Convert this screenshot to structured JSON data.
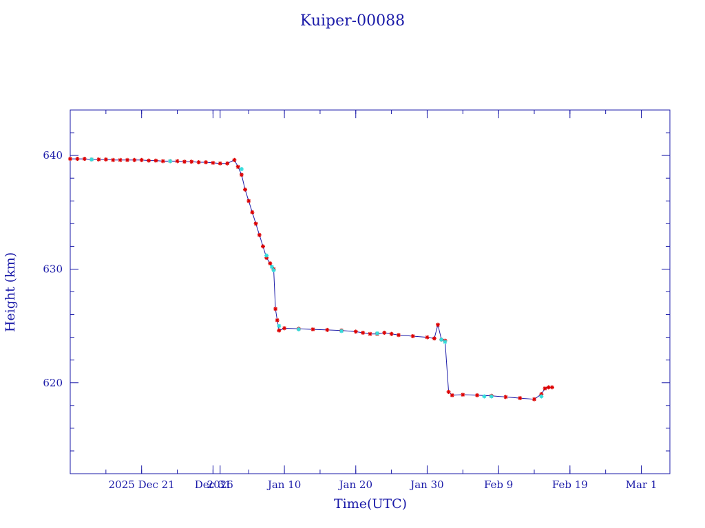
{
  "chart_data": {
    "type": "line",
    "title": "Kuiper-00088",
    "xlabel": "Time(UTC)",
    "ylabel": "Height (km)",
    "x_is_date": true,
    "xlim": [
      "2025-12-11",
      "2026-03-05"
    ],
    "ylim": [
      612.0,
      644.0
    ],
    "x_ticks": [
      {
        "date": "2025-12-21",
        "label": "2025 Dec 21"
      },
      {
        "date": "2025-12-31",
        "label": "Dec 31"
      },
      {
        "date": "2026-01-01",
        "label": "2026"
      },
      {
        "date": "2026-01-10",
        "label": "Jan 10"
      },
      {
        "date": "2026-01-20",
        "label": "Jan 20"
      },
      {
        "date": "2026-01-30",
        "label": "Jan 30"
      },
      {
        "date": "2026-02-09",
        "label": "Feb  9"
      },
      {
        "date": "2026-02-19",
        "label": "Feb 19"
      },
      {
        "date": "2026-03-01",
        "label": "Mar  1"
      }
    ],
    "y_ticks": [
      620,
      630,
      640
    ],
    "colors": {
      "axis": "#1a1aa8",
      "line": "#1a1aa8",
      "marker_primary": "#dd0000",
      "marker_secondary": "#33dddd"
    },
    "series": [
      {
        "points": [
          [
            "2025-12-11T00:00",
            639.7
          ],
          [
            "2025-12-12T00:00",
            639.7
          ],
          [
            "2025-12-13T00:00",
            639.7
          ],
          [
            "2025-12-14T00:00",
            639.65
          ],
          [
            "2025-12-15T00:00",
            639.65
          ],
          [
            "2025-12-16T00:00",
            639.65
          ],
          [
            "2025-12-17T00:00",
            639.6
          ],
          [
            "2025-12-18T00:00",
            639.6
          ],
          [
            "2025-12-19T00:00",
            639.6
          ],
          [
            "2025-12-20T00:00",
            639.6
          ],
          [
            "2025-12-21T00:00",
            639.6
          ],
          [
            "2025-12-22T00:00",
            639.55
          ],
          [
            "2025-12-23T00:00",
            639.55
          ],
          [
            "2025-12-24T00:00",
            639.5
          ],
          [
            "2025-12-25T00:00",
            639.5
          ],
          [
            "2025-12-26T00:00",
            639.5
          ],
          [
            "2025-12-27T00:00",
            639.45
          ],
          [
            "2025-12-28T00:00",
            639.45
          ],
          [
            "2025-12-29T00:00",
            639.4
          ],
          [
            "2025-12-30T00:00",
            639.4
          ],
          [
            "2025-12-31T00:00",
            639.35
          ],
          [
            "2026-01-01T00:00",
            639.3
          ],
          [
            "2026-01-02T00:00",
            639.3
          ],
          [
            "2026-01-03T00:00",
            639.6
          ],
          [
            "2026-01-03T12:00",
            639.0
          ],
          [
            "2026-01-04T00:00",
            638.3
          ],
          [
            "2026-01-04T12:00",
            637.0
          ],
          [
            "2026-01-05T00:00",
            636.0
          ],
          [
            "2026-01-05T12:00",
            635.0
          ],
          [
            "2026-01-06T00:00",
            634.0
          ],
          [
            "2026-01-06T12:00",
            633.0
          ],
          [
            "2026-01-07T00:00",
            632.0
          ],
          [
            "2026-01-07T12:00",
            631.0
          ],
          [
            "2026-01-08T00:00",
            630.5
          ],
          [
            "2026-01-08T12:00",
            630.0
          ],
          [
            "2026-01-08T18:00",
            626.5
          ],
          [
            "2026-01-09T00:00",
            625.5
          ],
          [
            "2026-01-09T06:00",
            624.6
          ],
          [
            "2026-01-10T00:00",
            624.8
          ],
          [
            "2026-01-12T00:00",
            624.75
          ],
          [
            "2026-01-14T00:00",
            624.7
          ],
          [
            "2026-01-16T00:00",
            624.65
          ],
          [
            "2026-01-18T00:00",
            624.6
          ],
          [
            "2026-01-20T00:00",
            624.5
          ],
          [
            "2026-01-21T00:00",
            624.4
          ],
          [
            "2026-01-22T00:00",
            624.3
          ],
          [
            "2026-01-23T00:00",
            624.3
          ],
          [
            "2026-01-24T00:00",
            624.4
          ],
          [
            "2026-01-25T00:00",
            624.3
          ],
          [
            "2026-01-26T00:00",
            624.2
          ],
          [
            "2026-01-28T00:00",
            624.1
          ],
          [
            "2026-01-30T00:00",
            624.0
          ],
          [
            "2026-01-31T00:00",
            623.9
          ],
          [
            "2026-01-31T12:00",
            625.1
          ],
          [
            "2026-02-01T00:00",
            623.8
          ],
          [
            "2026-02-01T12:00",
            623.7
          ],
          [
            "2026-02-02T00:00",
            619.2
          ],
          [
            "2026-02-02T12:00",
            618.9
          ],
          [
            "2026-02-04T00:00",
            618.95
          ],
          [
            "2026-02-06T00:00",
            618.9
          ],
          [
            "2026-02-08T00:00",
            618.85
          ],
          [
            "2026-02-10T00:00",
            618.75
          ],
          [
            "2026-02-12T00:00",
            618.65
          ],
          [
            "2026-02-14T00:00",
            618.55
          ],
          [
            "2026-02-15T00:00",
            619.0
          ],
          [
            "2026-02-15T12:00",
            619.5
          ],
          [
            "2026-02-16T00:00",
            619.6
          ],
          [
            "2026-02-16T12:00",
            619.6
          ]
        ]
      }
    ],
    "secondary_markers": [
      [
        "2025-12-14T00:00",
        639.65
      ],
      [
        "2025-12-25T00:00",
        639.5
      ],
      [
        "2026-01-04T00:00",
        638.8
      ],
      [
        "2026-01-07T12:00",
        631.2
      ],
      [
        "2026-01-08T06:00",
        630.2
      ],
      [
        "2026-01-08T12:00",
        629.9
      ],
      [
        "2026-01-09T06:00",
        625.0
      ],
      [
        "2026-01-12T00:00",
        624.7
      ],
      [
        "2026-01-18T00:00",
        624.55
      ],
      [
        "2026-01-23T00:00",
        624.35
      ],
      [
        "2026-02-01T00:00",
        623.8
      ],
      [
        "2026-02-01T12:00",
        623.6
      ],
      [
        "2026-02-07T00:00",
        618.8
      ],
      [
        "2026-02-08T00:00",
        618.8
      ],
      [
        "2026-02-15T00:00",
        618.8
      ]
    ]
  }
}
